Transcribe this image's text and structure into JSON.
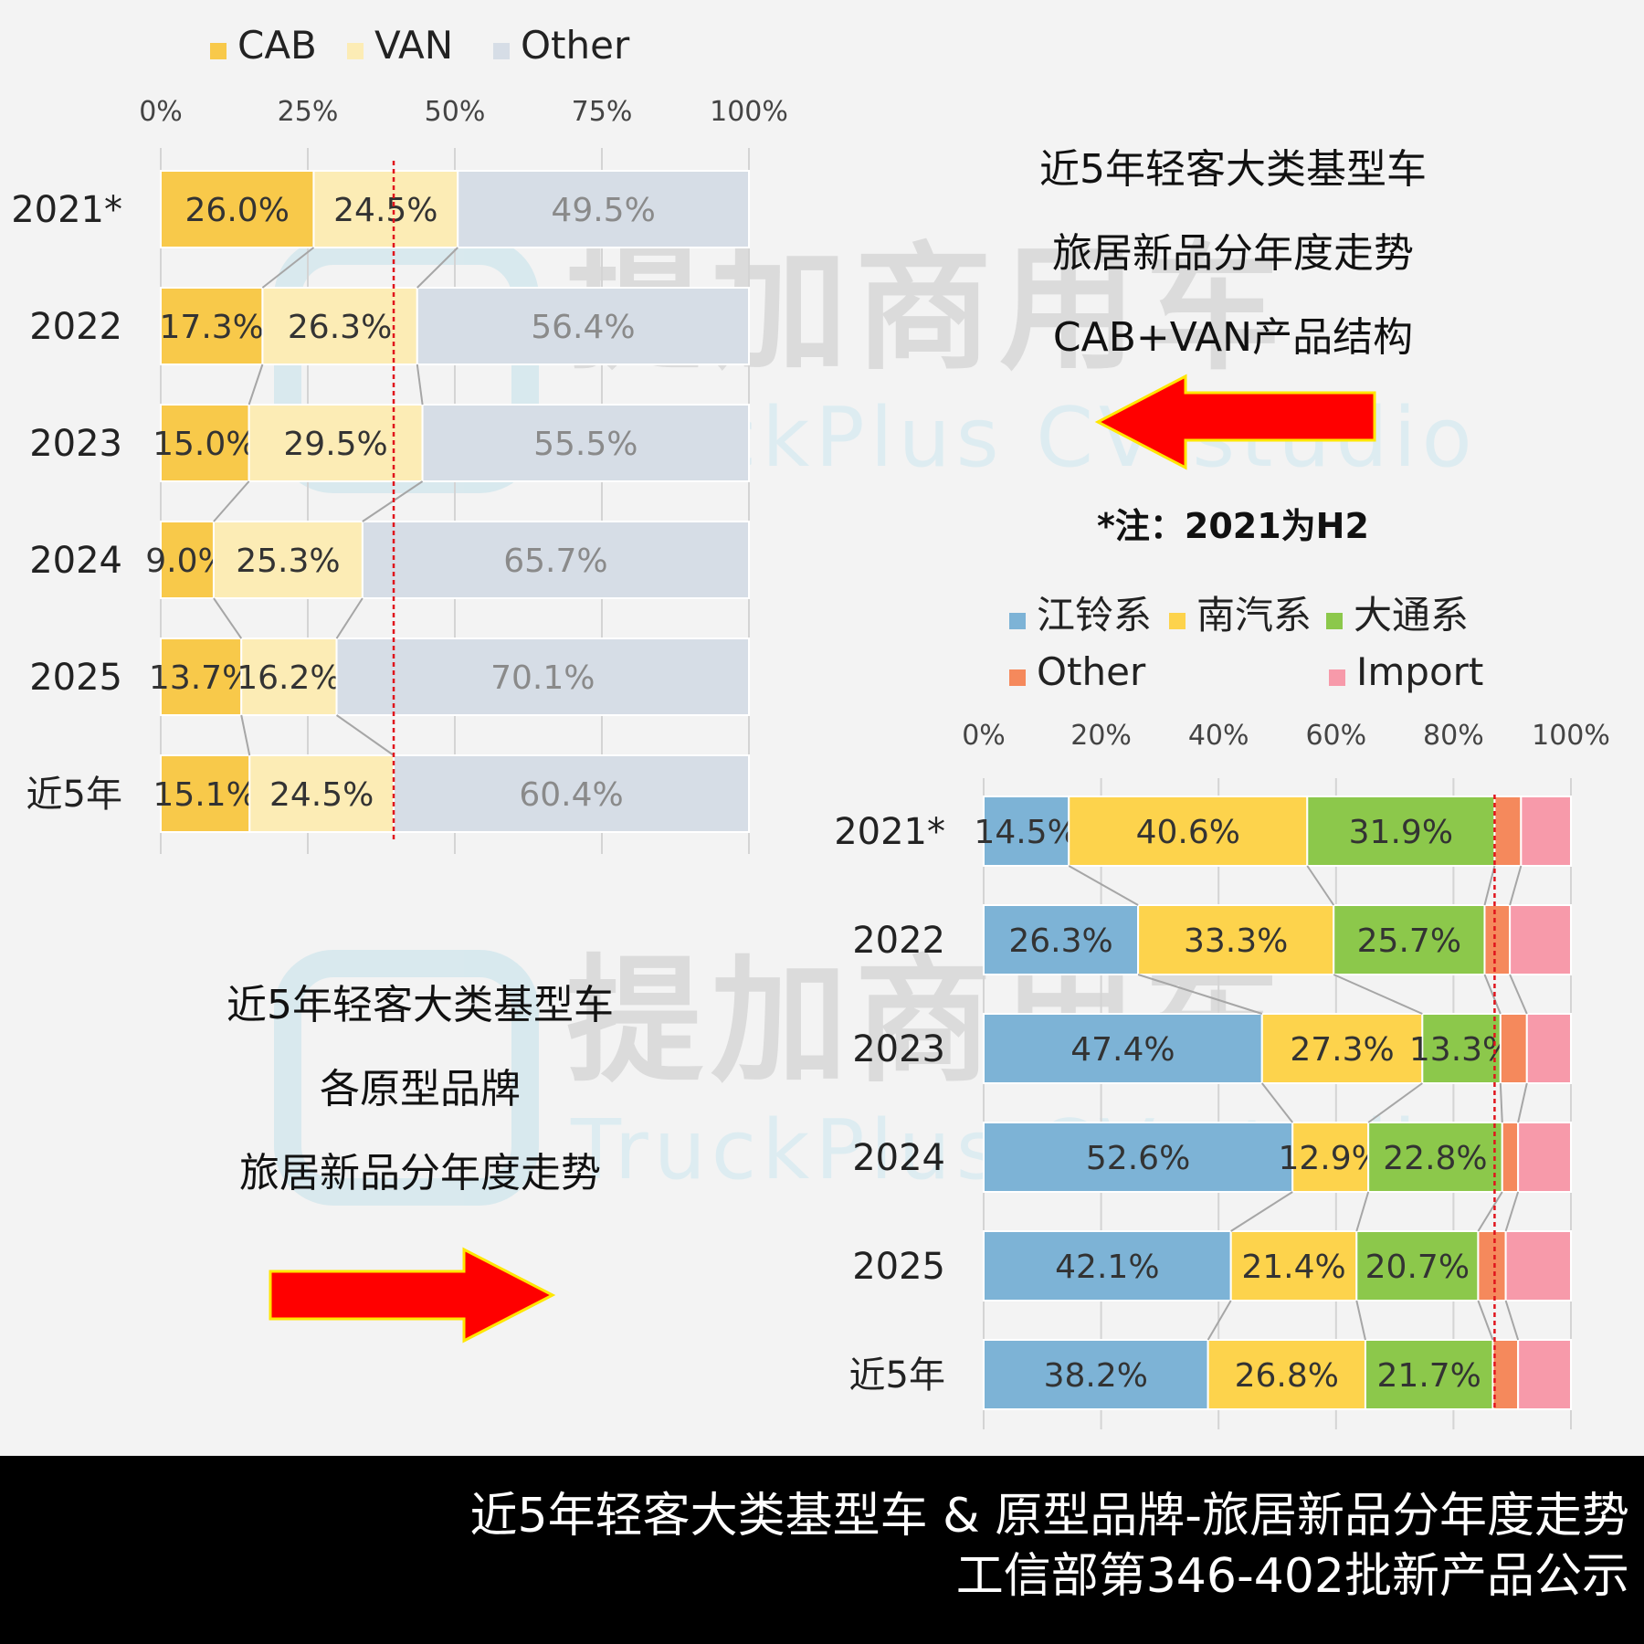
{
  "watermark": {
    "cn": "提加商用车",
    "en": "TruckPlus CV studio"
  },
  "panel_top_right": {
    "line1": "近5年轻客大类基型车",
    "line2": "旅居新品分年度走势",
    "line3": "CAB+VAN产品结构"
  },
  "note": "*注：2021为H2",
  "panel_bottom_left": {
    "line1": "近5年轻客大类基型车",
    "line2": "各原型品牌",
    "line3": "旅居新品分年度走势"
  },
  "footer": {
    "line1": "近5年轻客大类基型车 & 原型品牌-旅居新品分年度走势",
    "line2": "工信部第346-402批新产品公示"
  },
  "colors": {
    "cab": "#f8c94a",
    "van": "#fcecb5",
    "other_body": "#d6dde6",
    "jiangling": "#7db3d6",
    "nanqi": "#fdd34c",
    "datong": "#8cc84b",
    "other_brand": "#f5895c",
    "import": "#f79aaa",
    "ref_line": "#e0141c",
    "arrow": "#ff0000"
  },
  "chart_data": [
    {
      "type": "bar",
      "orientation": "horizontal",
      "stacked": "percent",
      "categories": [
        "2021*",
        "2022",
        "2023",
        "2024",
        "2025",
        "近5年"
      ],
      "series": [
        {
          "name": "CAB",
          "values": [
            26.0,
            17.3,
            15.0,
            9.0,
            13.7,
            15.1
          ],
          "labels": [
            "26.0%",
            "17.3%",
            "15.0%",
            "9.0%",
            "13.7%",
            "15.1%"
          ]
        },
        {
          "name": "VAN",
          "values": [
            24.5,
            26.3,
            29.5,
            25.3,
            16.2,
            24.5
          ],
          "labels": [
            "24.5%",
            "26.3%",
            "29.5%",
            "25.3%",
            "16.2%",
            "24.5%"
          ]
        },
        {
          "name": "Other",
          "values": [
            49.5,
            56.4,
            55.5,
            65.7,
            70.1,
            60.4
          ],
          "labels": [
            "49.5%",
            "56.4%",
            "55.5%",
            "65.7%",
            "70.1%",
            "60.4%"
          ]
        }
      ],
      "xticks": [
        "0%",
        "25%",
        "50%",
        "75%",
        "100%"
      ],
      "xlim": [
        0,
        100
      ],
      "reference_line": 39.6,
      "legend_position": "top",
      "grid": true
    },
    {
      "type": "bar",
      "orientation": "horizontal",
      "stacked": "percent",
      "categories": [
        "2021*",
        "2022",
        "2023",
        "2024",
        "2025",
        "近5年"
      ],
      "series": [
        {
          "name": "江铃系",
          "values": [
            14.5,
            26.3,
            47.4,
            52.6,
            42.1,
            38.2
          ],
          "labels": [
            "14.5%",
            "26.3%",
            "47.4%",
            "52.6%",
            "42.1%",
            "38.2%"
          ]
        },
        {
          "name": "南汽系",
          "values": [
            40.6,
            33.3,
            27.3,
            12.9,
            21.4,
            26.8
          ],
          "labels": [
            "40.6%",
            "33.3%",
            "27.3%",
            "12.9%",
            "21.4%",
            "26.8%"
          ]
        },
        {
          "name": "大通系",
          "values": [
            31.9,
            25.7,
            13.3,
            22.8,
            20.7,
            21.7
          ],
          "labels": [
            "31.9%",
            "25.7%",
            "13.3%",
            "22.8%",
            "20.7%",
            "21.7%"
          ]
        },
        {
          "name": "Other",
          "values": [
            4.5,
            4.3,
            4.5,
            2.7,
            4.7,
            4.3
          ],
          "labels": [
            "",
            "",
            "",
            "",
            "",
            ""
          ]
        },
        {
          "name": "Import",
          "values": [
            8.5,
            10.4,
            7.5,
            9.0,
            11.1,
            9.0
          ],
          "labels": [
            "",
            "",
            "",
            "",
            "",
            ""
          ]
        }
      ],
      "xticks": [
        "0%",
        "20%",
        "40%",
        "60%",
        "80%",
        "100%"
      ],
      "xlim": [
        0,
        100
      ],
      "reference_line": 87.0,
      "legend_position": "top",
      "grid": true
    }
  ]
}
